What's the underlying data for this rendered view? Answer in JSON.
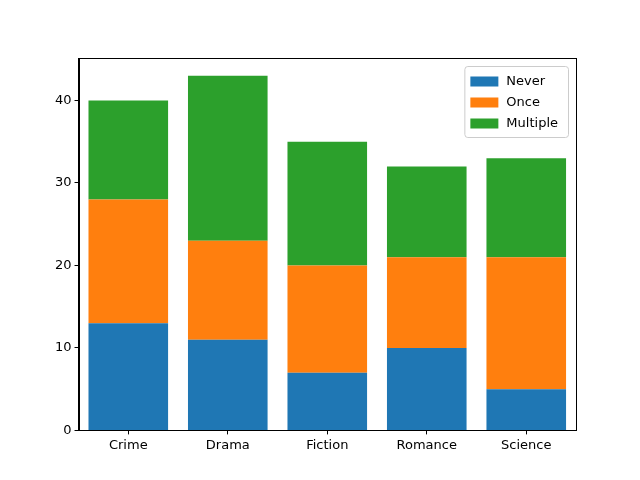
{
  "chart_data": {
    "type": "bar",
    "stacked": true,
    "categories": [
      "Crime",
      "Drama",
      "Fiction",
      "Romance",
      "Science"
    ],
    "series": [
      {
        "name": "Never",
        "color": "#1f77b4",
        "values": [
          13,
          11,
          7,
          10,
          5
        ]
      },
      {
        "name": "Once",
        "color": "#ff7f0e",
        "values": [
          15,
          12,
          13,
          11,
          16
        ]
      },
      {
        "name": "Multiple",
        "color": "#2ca02c",
        "values": [
          12,
          20,
          15,
          11,
          12
        ]
      }
    ],
    "ylim": [
      0,
      45.15
    ],
    "yticks": [
      0,
      10,
      20,
      30,
      40
    ],
    "grid": false,
    "legend": "upper right"
  }
}
